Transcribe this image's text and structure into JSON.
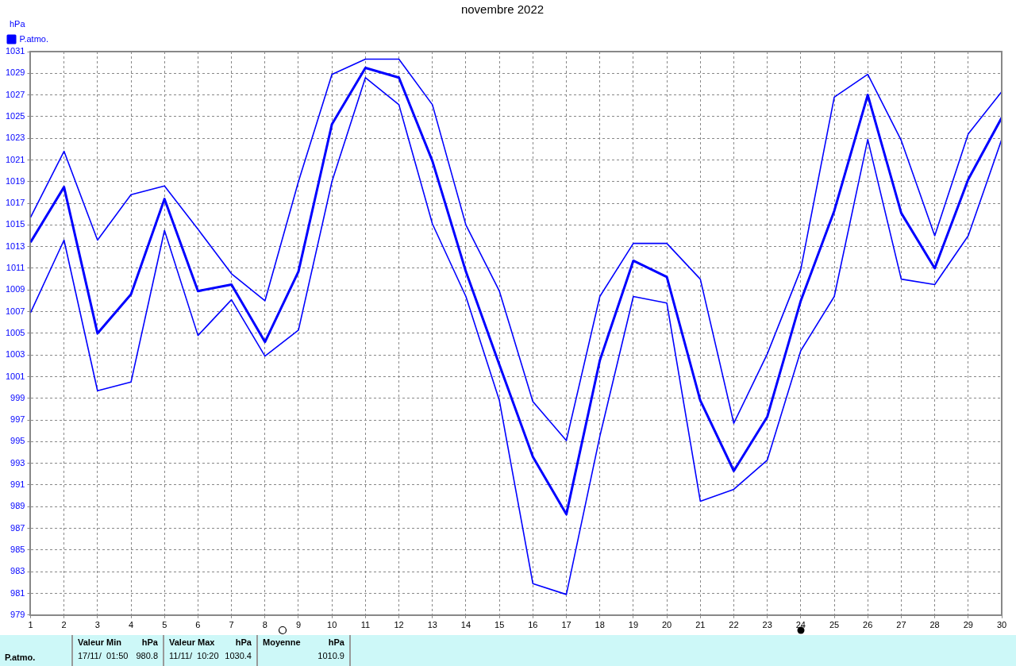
{
  "chart_data": {
    "type": "line",
    "title": "novembre 2022",
    "ylabel": "hPa",
    "x": [
      1,
      2,
      3,
      4,
      5,
      6,
      7,
      8,
      9,
      10,
      11,
      12,
      13,
      14,
      15,
      16,
      17,
      18,
      19,
      20,
      21,
      22,
      23,
      24,
      25,
      26,
      27,
      28,
      29,
      30
    ],
    "series": [
      {
        "color": "#0000ff",
        "values": [
          1015.7,
          1021.8,
          1013.6,
          1017.8,
          1018.6,
          1014.6,
          1010.5,
          1008.0,
          1019.0,
          1028.9,
          1030.3,
          1030.3,
          1026.1,
          1015.0,
          1008.9,
          998.7,
          995.1,
          1008.4,
          1013.3,
          1013.3,
          1010.0,
          996.7,
          1003.1,
          1010.9,
          1026.8,
          1028.9,
          1022.8,
          1014.0,
          1023.4,
          1027.3
        ]
      },
      {
        "name": "P.atmo.",
        "color": "#0000ff",
        "values": [
          1013.4,
          1018.5,
          1005.0,
          1008.6,
          1017.4,
          1008.9,
          1009.5,
          1004.2,
          1010.7,
          1024.3,
          1029.5,
          1028.6,
          1020.9,
          1010.7,
          1002.1,
          993.6,
          988.3,
          1002.5,
          1011.7,
          1010.2,
          998.8,
          992.3,
          997.3,
          1008.0,
          1016.3,
          1027.0,
          1016.1,
          1011.0,
          1019.2,
          1024.9
        ]
      },
      {
        "color": "#0000ff",
        "values": [
          1006.9,
          1013.6,
          999.7,
          1000.5,
          1014.5,
          1004.8,
          1008.1,
          1002.9,
          1005.3,
          1019.0,
          1028.6,
          1026.1,
          1015.1,
          1008.4,
          998.8,
          981.9,
          980.9,
          995.5,
          1008.4,
          1007.8,
          989.5,
          990.6,
          993.3,
          1003.4,
          1008.4,
          1022.9,
          1010.0,
          1009.5,
          1014.0,
          1022.9
        ]
      }
    ],
    "xlim": [
      1,
      30
    ],
    "xticks": [
      1,
      2,
      3,
      4,
      5,
      6,
      7,
      8,
      9,
      10,
      11,
      12,
      13,
      14,
      15,
      16,
      17,
      18,
      19,
      20,
      21,
      22,
      23,
      24,
      25,
      26,
      27,
      28,
      29,
      30
    ],
    "ylim": [
      979,
      1031
    ],
    "yticks": [
      979,
      981,
      983,
      985,
      987,
      989,
      991,
      993,
      995,
      997,
      999,
      1001,
      1003,
      1005,
      1007,
      1009,
      1011,
      1013,
      1015,
      1017,
      1019,
      1021,
      1023,
      1025,
      1027,
      1029,
      1031
    ],
    "grid": true,
    "legend": "top left",
    "marker": "none",
    "line_style": "solid",
    "annotations": [
      "P.atmo.",
      "Valeur Min",
      "hPa",
      "17/11/  01:50",
      "980.8",
      "Valeur Max",
      "hPa",
      "11/11/  10:20",
      "1030.4",
      "Moyenne",
      "hPa",
      "1010.9"
    ]
  }
}
